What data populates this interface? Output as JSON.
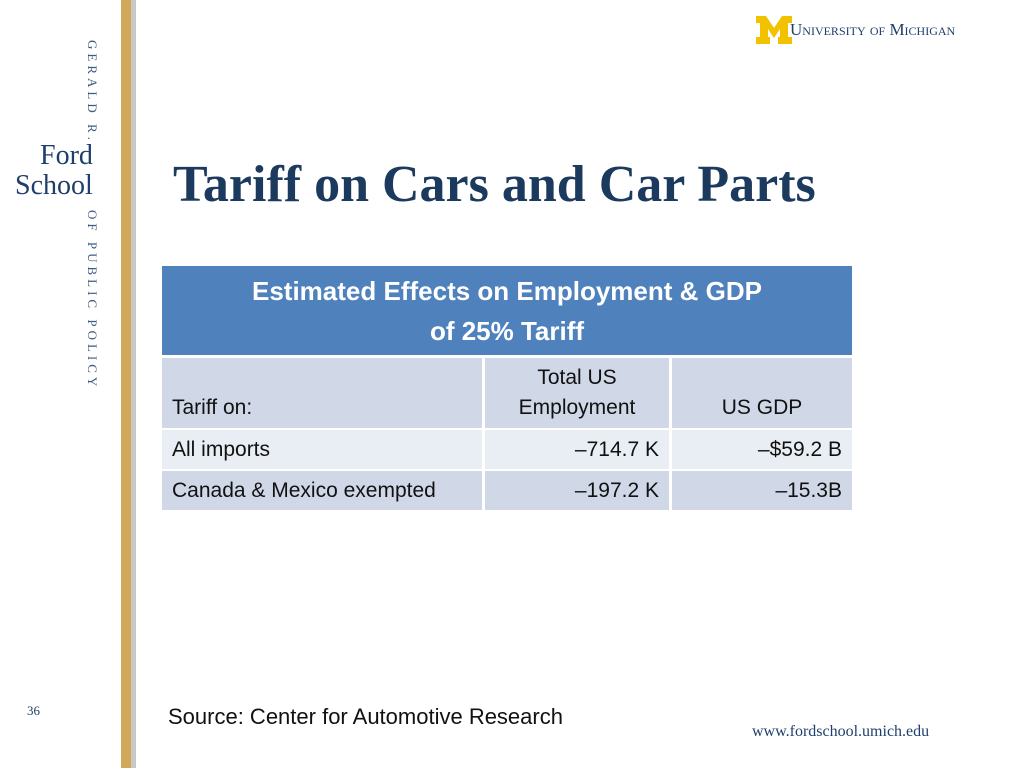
{
  "sidebar": {
    "line1": "GERALD R.",
    "ford": "Ford",
    "school": "School",
    "line2": "OF PUBLIC POLICY",
    "slide_number": "36"
  },
  "header": {
    "university": "University of Michigan",
    "title": "Tariff on Cars and Car Parts"
  },
  "table": {
    "caption": "Estimated Effects on Employment & GDP of 25% Tariff",
    "columns": [
      "Tariff on:",
      "Total US Employment",
      "US GDP"
    ],
    "rows": [
      [
        "All imports",
        "–714.7 K",
        "–$59.2 B"
      ],
      [
        "Canada & Mexico exempted",
        "–197.2 K",
        "–15.3B"
      ]
    ]
  },
  "footer": {
    "source": "Source:  Center for Automotive Research",
    "url": "www.fordschool.umich.edu"
  }
}
